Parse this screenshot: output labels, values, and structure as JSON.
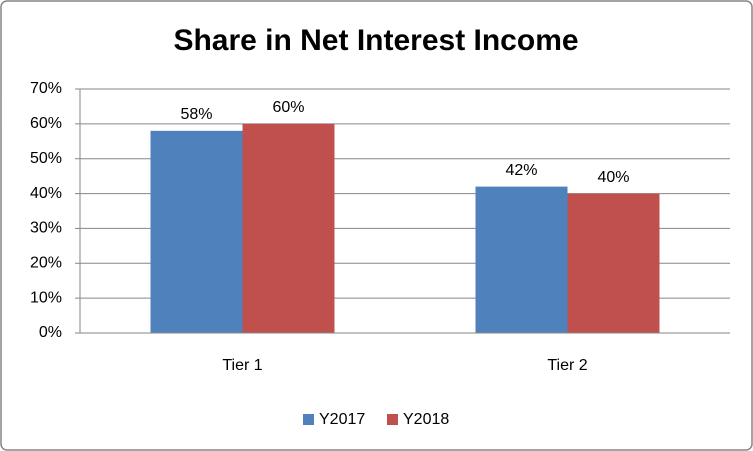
{
  "chart_data": {
    "type": "bar",
    "title": "Share in Net Interest Income",
    "categories": [
      "Tier 1",
      "Tier 2"
    ],
    "series": [
      {
        "name": "Y2017",
        "color": "#4f81bd",
        "values": [
          58,
          42
        ],
        "value_labels": [
          "58%",
          "42%"
        ]
      },
      {
        "name": "Y2018",
        "color": "#c0504d",
        "values": [
          60,
          40
        ],
        "value_labels": [
          "60%",
          "40%"
        ]
      }
    ],
    "ylim": [
      0,
      70
    ],
    "yticks": [
      {
        "value": 0,
        "label": "0%"
      },
      {
        "value": 10,
        "label": "10%"
      },
      {
        "value": 20,
        "label": "20%"
      },
      {
        "value": 30,
        "label": "30%"
      },
      {
        "value": 40,
        "label": "40%"
      },
      {
        "value": 50,
        "label": "50%"
      },
      {
        "value": 60,
        "label": "60%"
      },
      {
        "value": 70,
        "label": "70%"
      }
    ],
    "grid": true,
    "legend": "bottom"
  }
}
